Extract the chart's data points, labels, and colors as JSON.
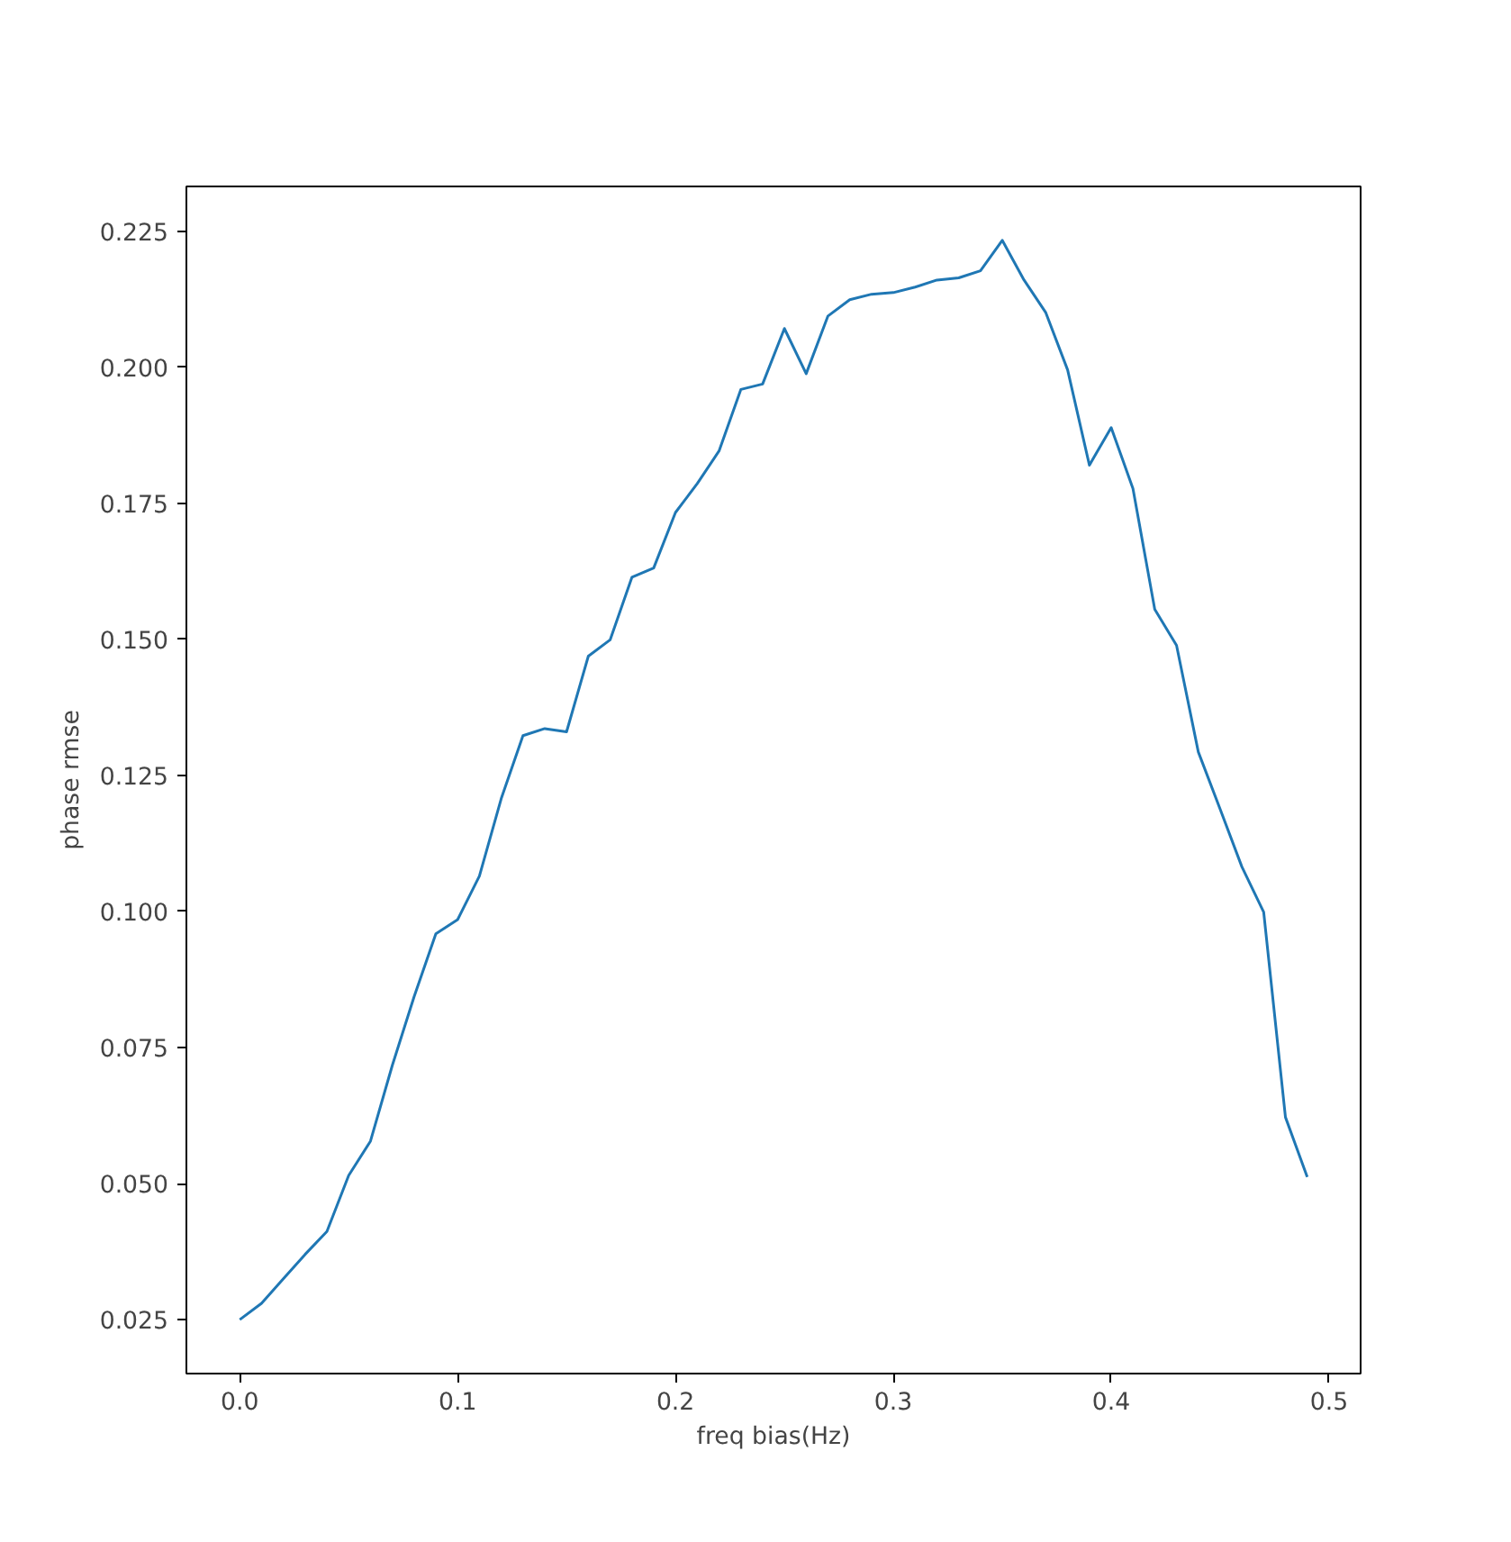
{
  "chart_data": {
    "type": "line",
    "xlabel": "freq bias(Hz)",
    "ylabel": "phase rmse",
    "x": [
      0.0,
      0.01,
      0.02,
      0.03,
      0.04,
      0.05,
      0.06,
      0.07,
      0.08,
      0.09,
      0.1,
      0.11,
      0.12,
      0.13,
      0.14,
      0.15,
      0.16,
      0.17,
      0.18,
      0.19,
      0.2,
      0.21,
      0.22,
      0.23,
      0.24,
      0.25,
      0.26,
      0.27,
      0.28,
      0.29,
      0.3,
      0.31,
      0.32,
      0.33,
      0.34,
      0.35,
      0.36,
      0.37,
      0.38,
      0.39,
      0.4,
      0.41,
      0.42,
      0.43,
      0.44,
      0.45,
      0.46,
      0.47,
      0.48,
      0.49
    ],
    "series": [
      {
        "color": "#1f77b4",
        "values": [
          0.025,
          0.028,
          0.0325,
          0.037,
          0.0412,
          0.0515,
          0.0578,
          0.0717,
          0.0843,
          0.0959,
          0.0985,
          0.1065,
          0.1207,
          0.1323,
          0.1336,
          0.133,
          0.1469,
          0.1499,
          0.1614,
          0.1631,
          0.1733,
          0.1786,
          0.1846,
          0.1959,
          0.1969,
          0.2071,
          0.1988,
          0.2094,
          0.2124,
          0.2134,
          0.2137,
          0.2147,
          0.216,
          0.2164,
          0.2177,
          0.2233,
          0.216,
          0.21,
          0.1995,
          0.182,
          0.1889,
          0.1777,
          0.1555,
          0.1489,
          0.1293,
          0.1188,
          0.1082,
          0.0999,
          0.0622,
          0.0512
        ]
      }
    ],
    "xlim": [
      -0.0245,
      0.5145
    ],
    "ylim": [
      0.0151,
      0.2332
    ],
    "xticks": [
      {
        "value": 0.0,
        "label": "0.0"
      },
      {
        "value": 0.1,
        "label": "0.1"
      },
      {
        "value": 0.2,
        "label": "0.2"
      },
      {
        "value": 0.3,
        "label": "0.3"
      },
      {
        "value": 0.4,
        "label": "0.4"
      },
      {
        "value": 0.5,
        "label": "0.5"
      }
    ],
    "yticks": [
      {
        "value": 0.025,
        "label": "0.025"
      },
      {
        "value": 0.05,
        "label": "0.050"
      },
      {
        "value": 0.075,
        "label": "0.075"
      },
      {
        "value": 0.1,
        "label": "0.100"
      },
      {
        "value": 0.125,
        "label": "0.125"
      },
      {
        "value": 0.15,
        "label": "0.150"
      },
      {
        "value": 0.175,
        "label": "0.175"
      },
      {
        "value": 0.2,
        "label": "0.200"
      },
      {
        "value": 0.225,
        "label": "0.225"
      }
    ],
    "grid": false
  }
}
